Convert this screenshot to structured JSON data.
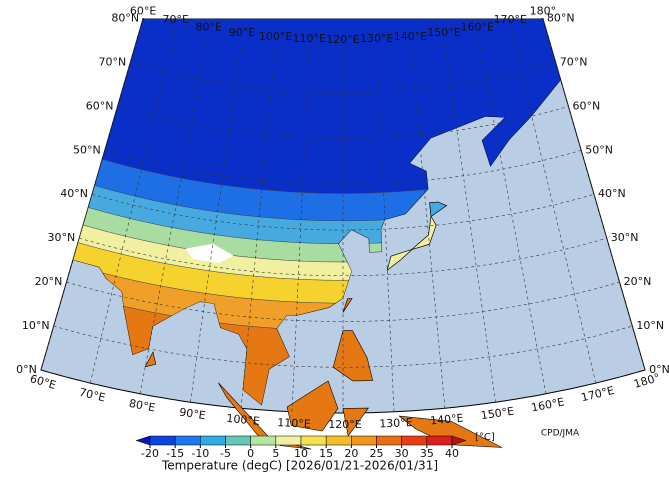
{
  "map": {
    "title": "Temperature (degC) [2026/01/21-2026/01/31]",
    "credit": "CPD/JMA",
    "unit_label": "[°C]",
    "lon_labels_top": [
      "60°E",
      "70°E",
      "80°E",
      "90°E",
      "100°E",
      "110°E",
      "120°E",
      "130°E",
      "140°E",
      "150°E",
      "160°E",
      "170°E",
      "180°"
    ],
    "lon_labels_bottom": [
      "60°E",
      "70°E",
      "80°E",
      "90°E",
      "100°E",
      "110°E",
      "120°E",
      "130°E",
      "140°E",
      "150°E",
      "160°E",
      "170°E",
      "180°"
    ],
    "lat_labels_left": [
      "0°N",
      "10°N",
      "20°N",
      "30°N",
      "40°N",
      "50°N",
      "60°N",
      "70°N",
      "80°N"
    ],
    "lat_labels_right": [
      "0°N",
      "10°N",
      "20°N",
      "30°N",
      "40°N",
      "50°N",
      "60°N",
      "70°N",
      "80°N"
    ],
    "colorbar": {
      "ticks": [
        -20,
        -15,
        -10,
        -5,
        0,
        5,
        10,
        15,
        20,
        25,
        30,
        35,
        40
      ],
      "colors": [
        "#0a14b4",
        "#0a46dc",
        "#1e78f0",
        "#32aae6",
        "#64c8b4",
        "#b4e6a0",
        "#f0f0a0",
        "#f5e150",
        "#f5be28",
        "#f0961e",
        "#e66e14",
        "#e63c14",
        "#dc1e1e",
        "#b41414"
      ]
    }
  }
}
